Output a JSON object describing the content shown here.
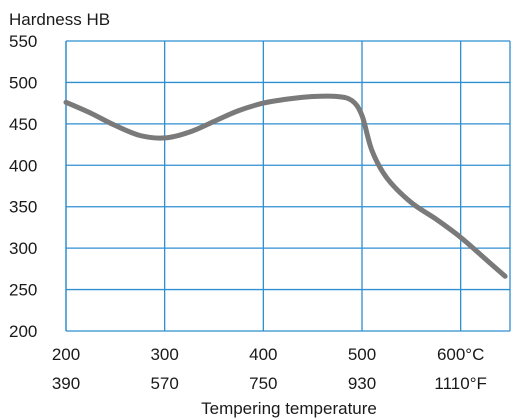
{
  "chart_data": {
    "type": "line",
    "ylabel": "Hardness HB",
    "xlabel": "Tempering temperature",
    "xlim": [
      200,
      650
    ],
    "ylim": [
      200,
      550
    ],
    "grid": true,
    "y_ticks": [
      {
        "value": 200,
        "label": "200"
      },
      {
        "value": 250,
        "label": "250"
      },
      {
        "value": 300,
        "label": "300"
      },
      {
        "value": 350,
        "label": "350"
      },
      {
        "value": 400,
        "label": "400"
      },
      {
        "value": 450,
        "label": "450"
      },
      {
        "value": 500,
        "label": "500"
      },
      {
        "value": 550,
        "label": "550"
      }
    ],
    "x_ticks": [
      {
        "value": 200,
        "label": "200",
        "label2": "390"
      },
      {
        "value": 300,
        "label": "300",
        "label2": "570"
      },
      {
        "value": 400,
        "label": "400",
        "label2": "750"
      },
      {
        "value": 500,
        "label": "500",
        "label2": "930"
      },
      {
        "value": 600,
        "label": "600°C",
        "label2": "1110°F"
      }
    ],
    "series": [
      {
        "color": "#7a7a7a",
        "x": [
          200,
          225,
          250,
          275,
          300,
          325,
          350,
          375,
          400,
          425,
          450,
          475,
          490,
          500,
          510,
          525,
          550,
          575,
          600,
          625,
          645
        ],
        "y": [
          476,
          463,
          448,
          436,
          433,
          440,
          453,
          466,
          475,
          480,
          483,
          483,
          478,
          460,
          418,
          385,
          355,
          335,
          313,
          287,
          266
        ]
      }
    ]
  },
  "colors": {
    "grid": "#2f8fd0",
    "curve": "#7a7a7a",
    "text": "#1a1a1a"
  }
}
